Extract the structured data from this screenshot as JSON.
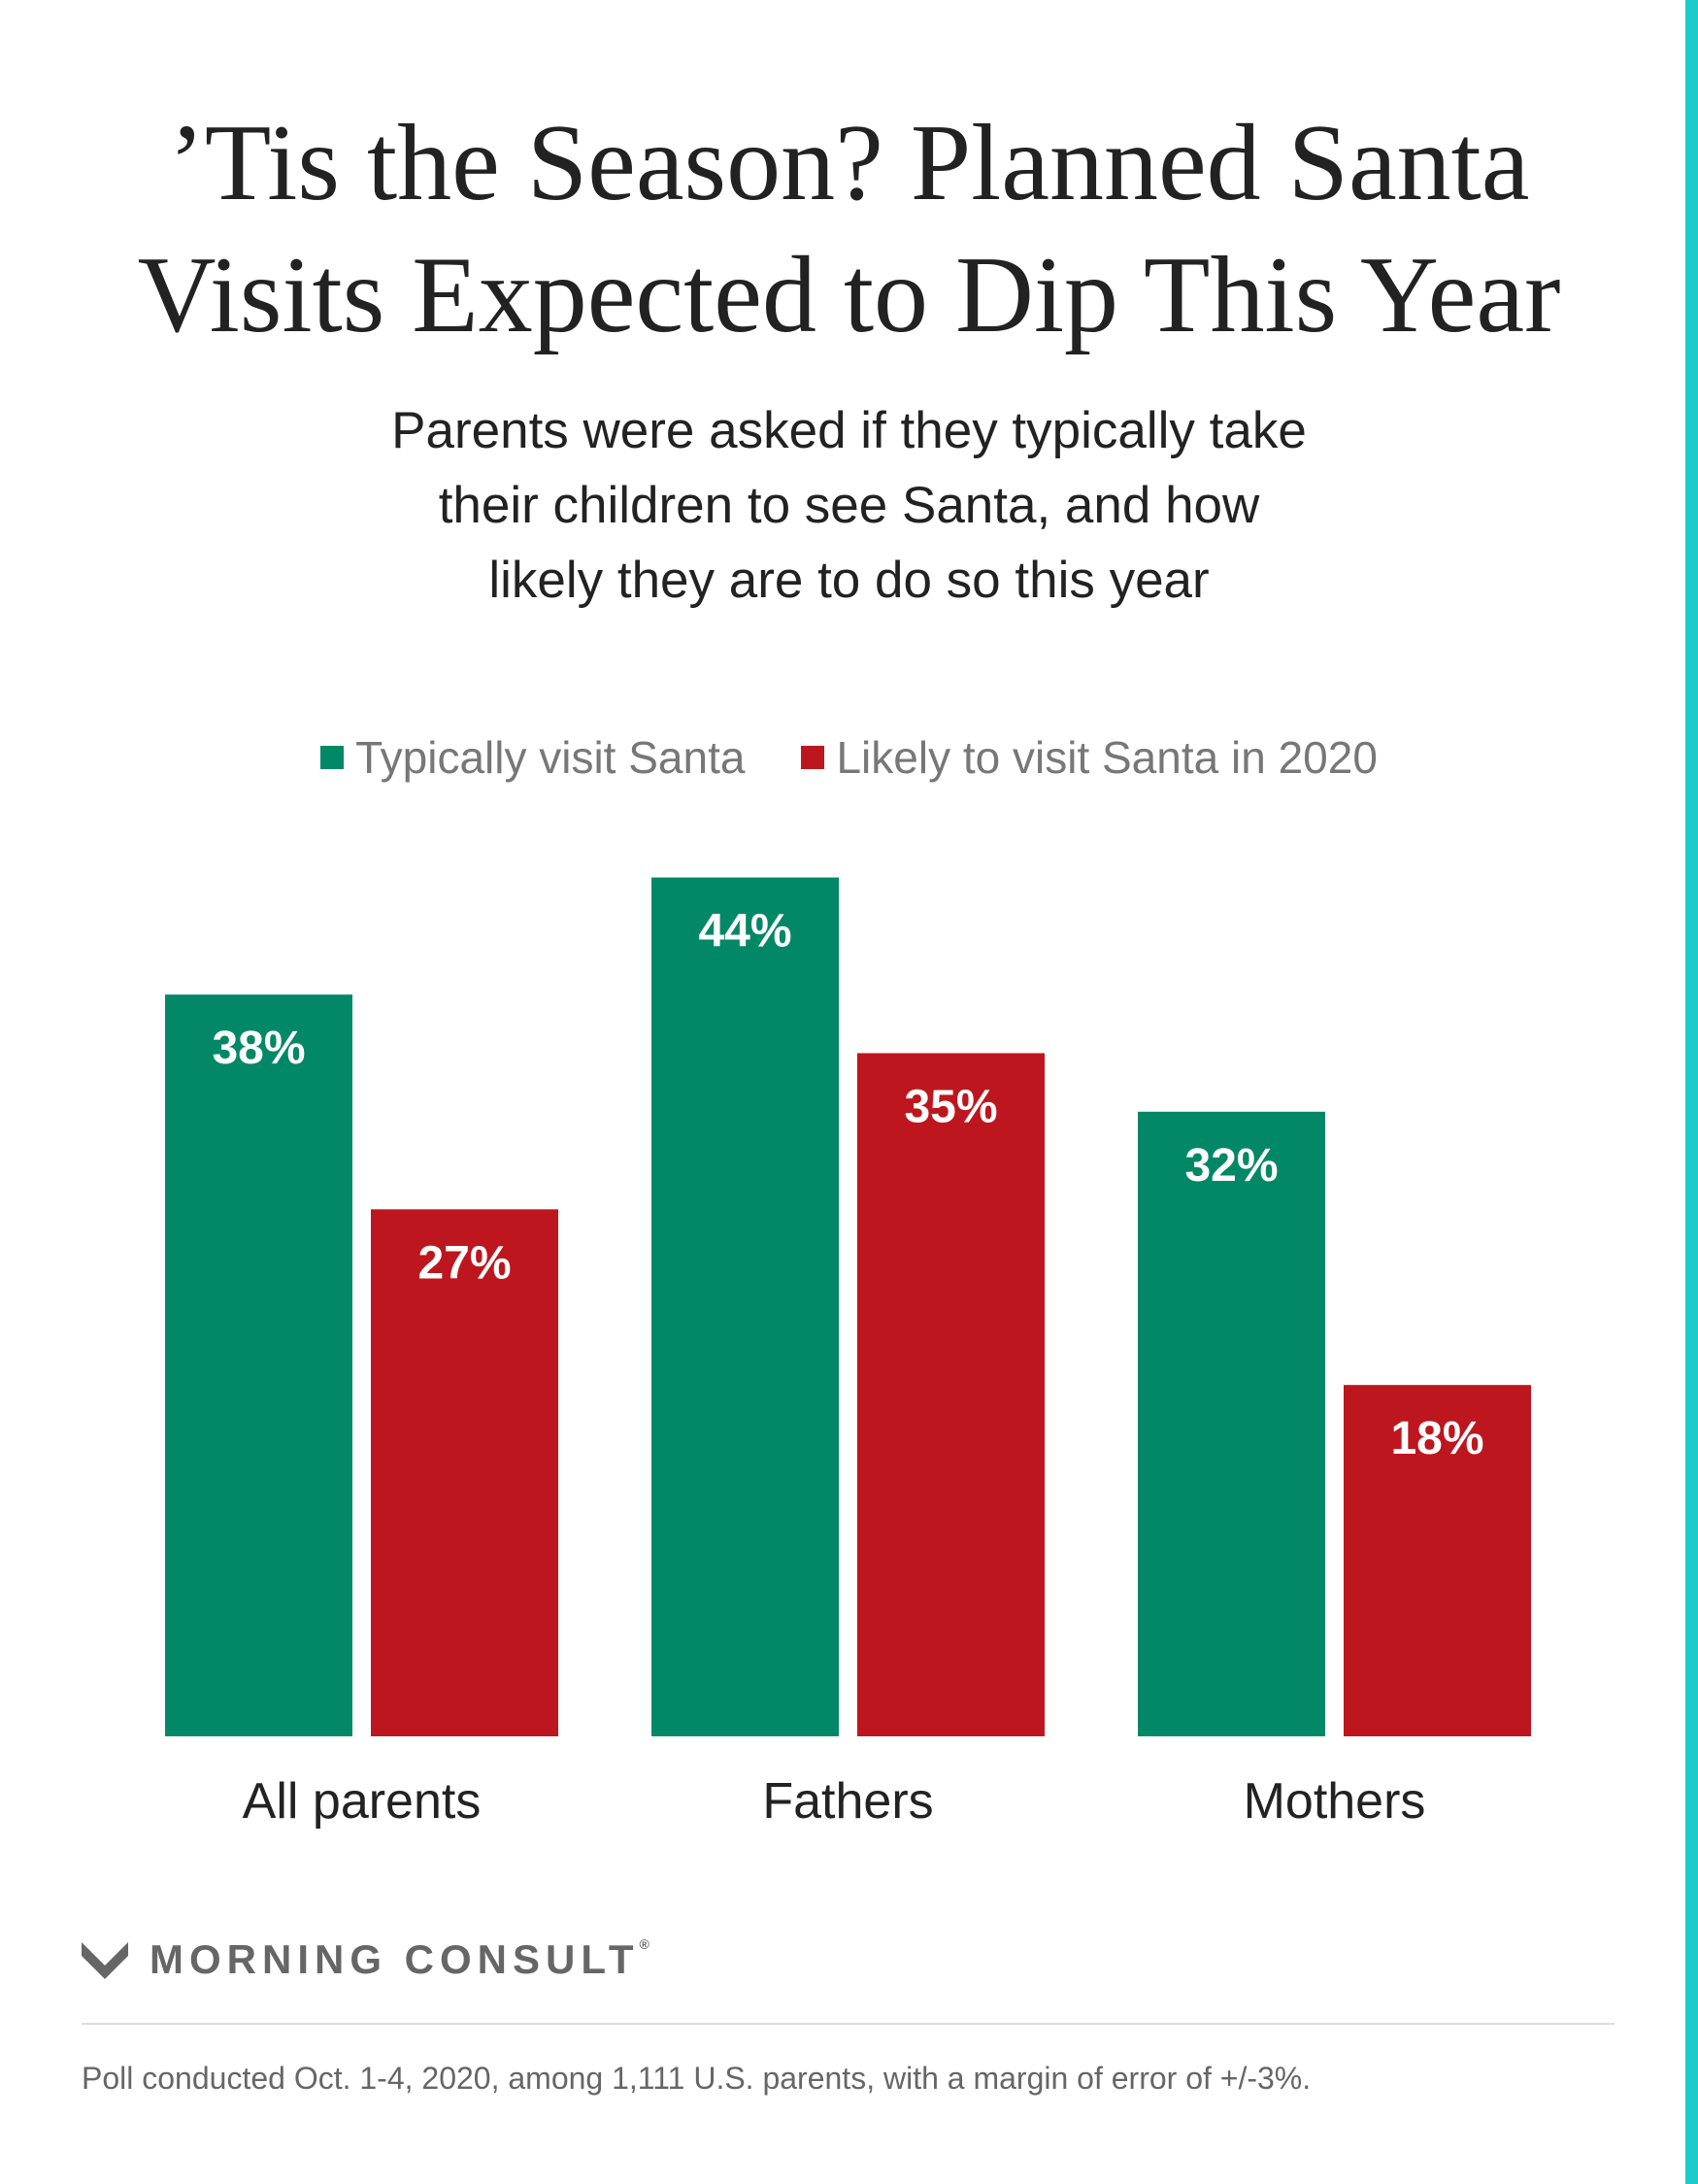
{
  "colors": {
    "typically": "#038867",
    "likely": "#BE161E",
    "accent": "#1ECBCB",
    "text_dark": "#222222",
    "text_muted": "#777777"
  },
  "title_line1": "’Tis the Season? Planned Santa",
  "title_line2": "Visits Expected to Dip This Year",
  "subtitle_line1": "Parents were asked if they typically take",
  "subtitle_line2": "their children to see Santa, and how",
  "subtitle_line3": "likely they are to do so this year",
  "brand": {
    "name": "MORNING CONSULT",
    "reg": "®",
    "icon": "morning-consult-logo-icon"
  },
  "footnote": "Poll conducted Oct. 1-4, 2020, among 1,111 U.S. parents, with a margin of error of +/-3%.",
  "chart_data": {
    "type": "bar",
    "categories": [
      "All parents",
      "Fathers",
      "Mothers"
    ],
    "series": [
      {
        "name": "Typically visit Santa",
        "values": [
          38,
          44,
          32
        ],
        "labels": [
          "38%",
          "44%",
          "32%"
        ],
        "color": "#038867"
      },
      {
        "name": "Likely to visit Santa in 2020",
        "values": [
          27,
          35,
          18
        ],
        "labels": [
          "27%",
          "35%",
          "18%"
        ],
        "color": "#BE161E"
      }
    ],
    "title": "’Tis the Season? Planned Santa Visits Expected to Dip This Year",
    "ylim": [
      0,
      50
    ],
    "grid": false,
    "legend": "top-center"
  }
}
